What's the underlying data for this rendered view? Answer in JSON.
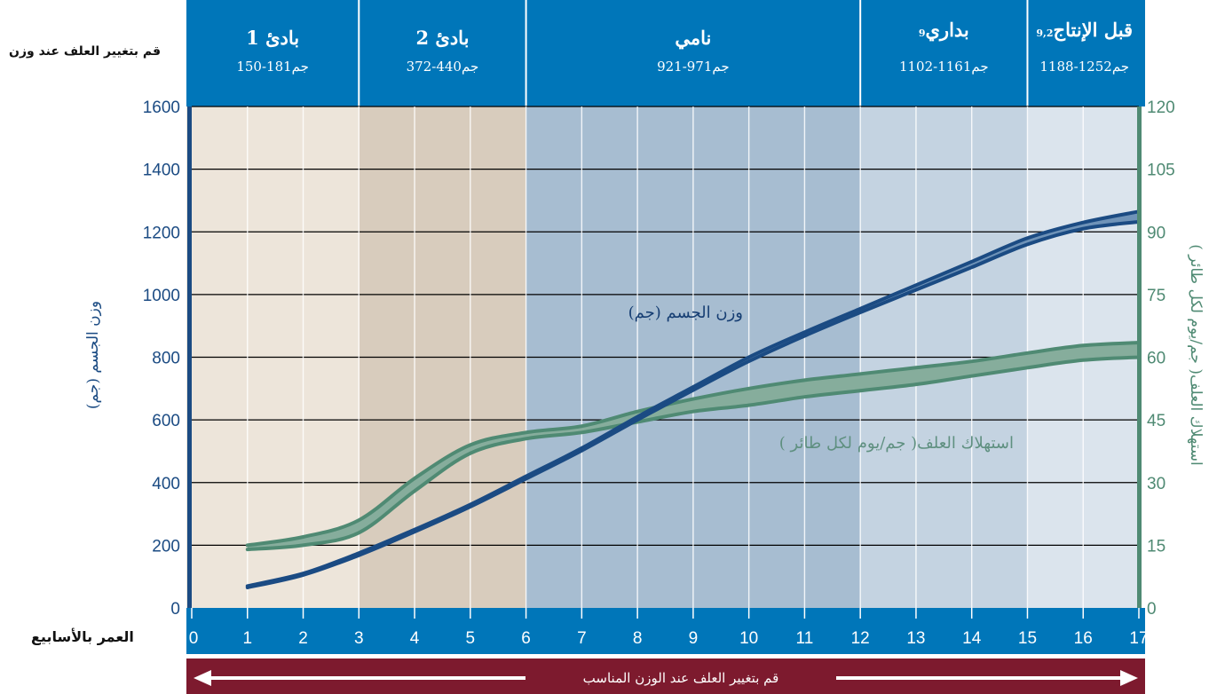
{
  "side_note": "قم بتغيير العلف عند وزن",
  "x_axis_title": "العمر بالأسابيع",
  "bottom_banner": "قم بتغيير العلف عند الوزن المناسب",
  "colors": {
    "header": "#0076b9",
    "x_axis_bar": "#0076b9",
    "banner": "#7d1a2e",
    "weight_line": "#1b4b83",
    "feed_line": "#4f8a73"
  },
  "phases": [
    {
      "name": "بادئ 1",
      "range": "150-181جم",
      "from_week": 0,
      "to_week": 3,
      "bg": "#ede5da"
    },
    {
      "name": "بادئ 2",
      "range": "372-440جم",
      "from_week": 3,
      "to_week": 6,
      "bg": "#d8ccbd"
    },
    {
      "name": "نامي",
      "range": "921-971جم",
      "from_week": 6,
      "to_week": 12,
      "bg": "#a7bdd1"
    },
    {
      "name": "بداري",
      "sup": "9",
      "range": "1102-1161جم",
      "from_week": 12,
      "to_week": 15,
      "bg": "#c4d3e1"
    },
    {
      "name": "قبل الإنتاج",
      "sup": "9,2",
      "range": "1188-1252جم",
      "from_week": 15,
      "to_week": 17,
      "bg": "#dbe4ed"
    }
  ],
  "chart_data": {
    "type": "line",
    "xlabel": "العمر بالأسابيع",
    "ylabel_left": "وزن الجسم (جم)",
    "ylabel_right": "استهلاك العلف( جم/يوم لكل طائر )",
    "xlim": [
      0,
      17
    ],
    "ylim_left": [
      0,
      1600
    ],
    "ylim_right": [
      0,
      120
    ],
    "x_ticks": [
      "0",
      "1",
      "2",
      "3",
      "4",
      "5",
      "6",
      "7",
      "8",
      "9",
      "10",
      "11",
      "12",
      "13",
      "14",
      "15",
      "16",
      "17"
    ],
    "y_ticks_left": [
      "0",
      "200",
      "400",
      "600",
      "800",
      "1000",
      "1200",
      "1400",
      "1600"
    ],
    "y_ticks_right": [
      "0",
      "15",
      "30",
      "45",
      "60",
      "75",
      "90",
      "105",
      "120"
    ],
    "grid": true,
    "series": [
      {
        "name": "وزن الجسم (جم)",
        "axis": "left",
        "x": [
          1,
          2,
          3,
          4,
          5,
          6,
          7,
          8,
          9,
          10,
          11,
          12,
          13,
          14,
          15,
          16,
          17
        ],
        "upper": [
          70,
          110,
          175,
          250,
          330,
          420,
          510,
          610,
          705,
          800,
          880,
          955,
          1030,
          1105,
          1180,
          1230,
          1265
        ],
        "lower": [
          65,
          105,
          168,
          243,
          323,
          412,
          502,
          600,
          695,
          787,
          868,
          943,
          1015,
          1087,
          1160,
          1210,
          1232
        ]
      },
      {
        "name": "استهلاك العلف( جم/يوم لكل طائر )",
        "axis": "right",
        "x": [
          1,
          2,
          3,
          4,
          5,
          6,
          7,
          8,
          9,
          10,
          11,
          12,
          13,
          14,
          15,
          16,
          17
        ],
        "upper": [
          15,
          17,
          21,
          31,
          39,
          42,
          43.5,
          47,
          50,
          52.5,
          54.5,
          56,
          57.5,
          59,
          61,
          62.8,
          63.5
        ],
        "lower": [
          14,
          15,
          18,
          28,
          37,
          40.5,
          42,
          44.5,
          47,
          48.5,
          50.5,
          52,
          53.5,
          55.5,
          57.5,
          59.3,
          60
        ]
      }
    ]
  }
}
